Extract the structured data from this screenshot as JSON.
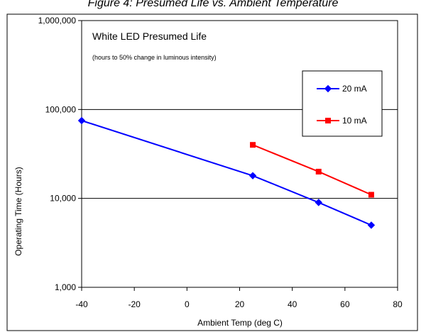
{
  "page_header": "Figure 4: Presumed Life vs. Ambient Temperature",
  "chart_data": {
    "type": "line",
    "title": "White LED Presumed Life",
    "subtitle": "(hours to 50% change in luminous intensity)",
    "xlabel": "Ambient Temp (deg C)",
    "ylabel": "Operating Time (Hours)",
    "xlim": [
      -40,
      80
    ],
    "ylim": [
      1000,
      1000000
    ],
    "y_scale": "log",
    "x_ticks": [
      -40,
      -20,
      0,
      20,
      40,
      60,
      80
    ],
    "x_tick_labels": [
      "-40",
      "-20",
      "0",
      "20",
      "40",
      "60",
      "80"
    ],
    "y_ticks": [
      1000,
      10000,
      100000,
      1000000
    ],
    "y_tick_labels": [
      "1,000",
      "10,000",
      "100,000",
      "1,000,000"
    ],
    "grid": "horizontal major lines",
    "legend_position": "upper-right",
    "series": [
      {
        "name": "20 mA",
        "color": "#0000ff",
        "marker": "diamond",
        "x": [
          -40,
          25,
          50,
          70
        ],
        "y": [
          75000,
          18000,
          9000,
          5000
        ]
      },
      {
        "name": "10 mA",
        "color": "#ff0000",
        "marker": "square",
        "x": [
          25,
          50,
          70
        ],
        "y": [
          40000,
          20000,
          11000
        ]
      }
    ]
  }
}
